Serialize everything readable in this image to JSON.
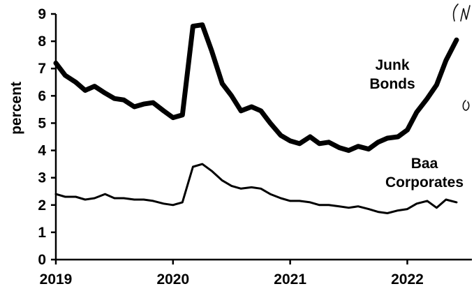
{
  "chart_data": {
    "type": "line",
    "ylabel": "percent",
    "ylim": [
      0,
      9
    ],
    "yticks": [
      0,
      1,
      2,
      3,
      4,
      5,
      6,
      7,
      8,
      9
    ],
    "xlim": [
      2019.0,
      2022.45
    ],
    "xticks": [
      {
        "value": 2019,
        "label": "2019"
      },
      {
        "value": 2020,
        "label": "2020"
      },
      {
        "value": 2021,
        "label": "2021"
      },
      {
        "value": 2022,
        "label": "2022"
      }
    ],
    "grid": false,
    "series": [
      {
        "name": "Junk Bonds",
        "label_lines": [
          "Junk",
          "Bonds"
        ],
        "color": "#000000",
        "weight": "heavy",
        "points": [
          [
            2019.0,
            7.2
          ],
          [
            2019.08,
            6.75
          ],
          [
            2019.17,
            6.5
          ],
          [
            2019.25,
            6.2
          ],
          [
            2019.33,
            6.35
          ],
          [
            2019.42,
            6.1
          ],
          [
            2019.5,
            5.9
          ],
          [
            2019.58,
            5.85
          ],
          [
            2019.67,
            5.6
          ],
          [
            2019.75,
            5.7
          ],
          [
            2019.83,
            5.75
          ],
          [
            2019.92,
            5.45
          ],
          [
            2020.0,
            5.2
          ],
          [
            2020.08,
            5.3
          ],
          [
            2020.17,
            8.55
          ],
          [
            2020.25,
            8.6
          ],
          [
            2020.33,
            7.65
          ],
          [
            2020.42,
            6.45
          ],
          [
            2020.5,
            6.0
          ],
          [
            2020.58,
            5.45
          ],
          [
            2020.67,
            5.6
          ],
          [
            2020.75,
            5.45
          ],
          [
            2020.83,
            5.0
          ],
          [
            2020.92,
            4.55
          ],
          [
            2021.0,
            4.35
          ],
          [
            2021.08,
            4.25
          ],
          [
            2021.17,
            4.5
          ],
          [
            2021.25,
            4.25
          ],
          [
            2021.33,
            4.3
          ],
          [
            2021.42,
            4.1
          ],
          [
            2021.5,
            4.0
          ],
          [
            2021.58,
            4.15
          ],
          [
            2021.67,
            4.05
          ],
          [
            2021.75,
            4.3
          ],
          [
            2021.83,
            4.45
          ],
          [
            2021.92,
            4.5
          ],
          [
            2022.0,
            4.75
          ],
          [
            2022.08,
            5.4
          ],
          [
            2022.17,
            5.9
          ],
          [
            2022.25,
            6.4
          ],
          [
            2022.33,
            7.3
          ],
          [
            2022.42,
            8.05
          ]
        ]
      },
      {
        "name": "Baa Corporates",
        "label_lines": [
          "Baa",
          "Corporates"
        ],
        "color": "#000000",
        "weight": "normal",
        "points": [
          [
            2019.0,
            2.4
          ],
          [
            2019.08,
            2.3
          ],
          [
            2019.17,
            2.3
          ],
          [
            2019.25,
            2.2
          ],
          [
            2019.33,
            2.25
          ],
          [
            2019.42,
            2.4
          ],
          [
            2019.5,
            2.25
          ],
          [
            2019.58,
            2.25
          ],
          [
            2019.67,
            2.2
          ],
          [
            2019.75,
            2.2
          ],
          [
            2019.83,
            2.15
          ],
          [
            2019.92,
            2.05
          ],
          [
            2020.0,
            2.0
          ],
          [
            2020.08,
            2.1
          ],
          [
            2020.17,
            3.4
          ],
          [
            2020.25,
            3.5
          ],
          [
            2020.33,
            3.25
          ],
          [
            2020.42,
            2.9
          ],
          [
            2020.5,
            2.7
          ],
          [
            2020.58,
            2.6
          ],
          [
            2020.67,
            2.65
          ],
          [
            2020.75,
            2.6
          ],
          [
            2020.83,
            2.4
          ],
          [
            2020.92,
            2.25
          ],
          [
            2021.0,
            2.15
          ],
          [
            2021.08,
            2.15
          ],
          [
            2021.17,
            2.1
          ],
          [
            2021.25,
            2.0
          ],
          [
            2021.33,
            2.0
          ],
          [
            2021.42,
            1.95
          ],
          [
            2021.5,
            1.9
          ],
          [
            2021.58,
            1.95
          ],
          [
            2021.67,
            1.85
          ],
          [
            2021.75,
            1.75
          ],
          [
            2021.83,
            1.7
          ],
          [
            2021.92,
            1.8
          ],
          [
            2022.0,
            1.85
          ],
          [
            2022.08,
            2.05
          ],
          [
            2022.17,
            2.15
          ],
          [
            2022.25,
            1.9
          ],
          [
            2022.33,
            2.2
          ],
          [
            2022.42,
            2.1
          ]
        ]
      }
    ]
  }
}
